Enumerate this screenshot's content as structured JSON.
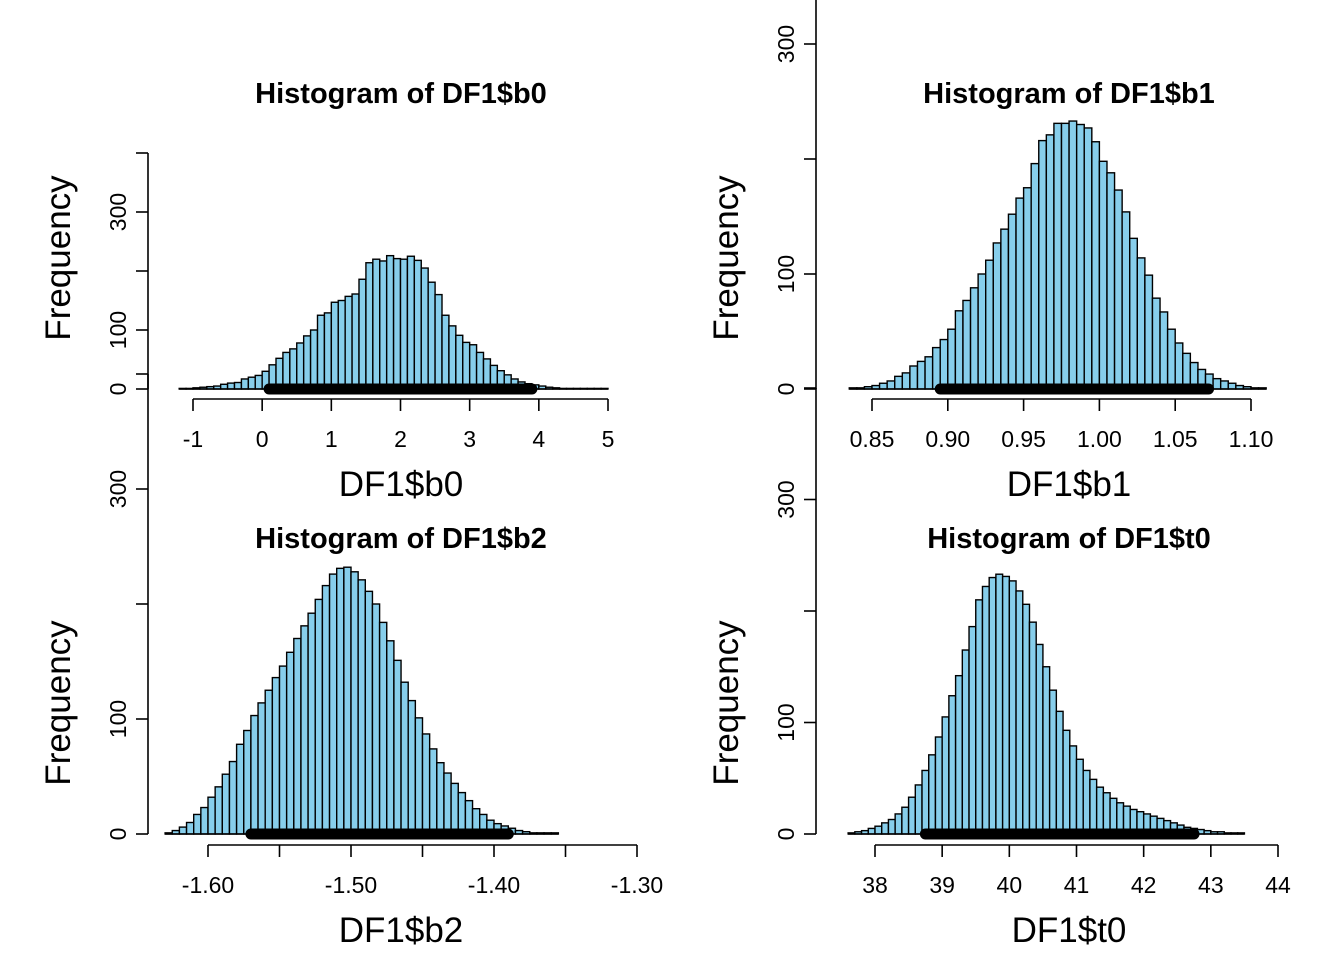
{
  "chart_data": [
    {
      "type": "bar",
      "title": "Histogram of DF1$b0",
      "xlabel": "DF1$b0",
      "ylabel": "Frequency",
      "bar_color": "#87ceeb",
      "interval_color": "#000000",
      "x_ticks": [
        -1,
        0,
        1,
        2,
        3,
        4,
        5
      ],
      "x_tick_labels": [
        "-1",
        "0",
        "1",
        "2",
        "3",
        "4",
        "5"
      ],
      "y_ticks": [
        0,
        100,
        300
      ],
      "y_tick_labels": [
        "0",
        "100",
        "300"
      ],
      "xlim": [
        -1,
        5
      ],
      "ylim": [
        0,
        400
      ],
      "bin_start": -1.2,
      "bin_width": 0.1,
      "values": [
        1,
        1,
        2,
        3,
        4,
        5,
        8,
        10,
        11,
        17,
        20,
        23,
        30,
        41,
        52,
        62,
        68,
        78,
        90,
        100,
        125,
        129,
        147,
        150,
        157,
        161,
        186,
        214,
        220,
        217,
        226,
        221,
        220,
        225,
        218,
        205,
        181,
        160,
        125,
        107,
        91,
        79,
        75,
        62,
        51,
        40,
        31,
        24,
        17,
        12,
        9,
        7,
        5,
        3,
        2,
        1,
        1,
        1,
        1,
        1,
        1,
        1
      ],
      "interval": [
        0.1,
        3.9
      ]
    },
    {
      "type": "bar",
      "title": "Histogram of DF1$b1",
      "xlabel": "DF1$b1",
      "ylabel": "Frequency",
      "bar_color": "#87ceeb",
      "interval_color": "#000000",
      "x_ticks": [
        0.85,
        0.9,
        0.95,
        1.0,
        1.05,
        1.1
      ],
      "x_tick_labels": [
        "0.85",
        "0.90",
        "0.95",
        "1.00",
        "1.05",
        "1.10"
      ],
      "y_ticks": [
        0,
        100,
        300
      ],
      "y_tick_labels": [
        "0",
        "100",
        "300"
      ],
      "xlim": [
        0.85,
        1.1
      ],
      "ylim": [
        0,
        400
      ],
      "bin_start": 0.835,
      "bin_width": 0.005,
      "values": [
        1,
        1,
        2,
        3,
        5,
        7,
        11,
        14,
        20,
        24,
        28,
        36,
        43,
        52,
        68,
        77,
        88,
        100,
        112,
        127,
        139,
        152,
        166,
        175,
        196,
        216,
        221,
        231,
        231,
        233,
        230,
        227,
        215,
        198,
        188,
        173,
        154,
        131,
        114,
        99,
        79,
        67,
        52,
        40,
        31,
        23,
        17,
        13,
        9,
        7,
        5,
        3,
        2,
        1,
        1
      ],
      "interval": [
        0.895,
        1.072
      ]
    },
    {
      "type": "bar",
      "title": "Histogram of DF1$b2",
      "xlabel": "DF1$b2",
      "ylabel": "Frequency",
      "bar_color": "#87ceeb",
      "interval_color": "#000000",
      "x_ticks": [
        -1.6,
        -1.55,
        -1.5,
        -1.45,
        -1.4,
        -1.35,
        -1.3
      ],
      "x_tick_labels": [
        "-1.60",
        "",
        "-1.50",
        "",
        "-1.40",
        "",
        "-1.30"
      ],
      "y_ticks": [
        0,
        100,
        300
      ],
      "y_tick_labels": [
        "0",
        "100",
        "300"
      ],
      "xlim": [
        -1.6,
        -1.3
      ],
      "ylim": [
        0,
        400
      ],
      "bin_start": -1.63,
      "bin_width": 0.005,
      "values": [
        1,
        3,
        6,
        10,
        17,
        23,
        32,
        41,
        52,
        63,
        78,
        90,
        103,
        114,
        125,
        136,
        146,
        158,
        170,
        181,
        192,
        204,
        216,
        226,
        231,
        232,
        228,
        221,
        211,
        200,
        184,
        168,
        151,
        132,
        116,
        101,
        87,
        74,
        62,
        53,
        44,
        36,
        29,
        22,
        17,
        12,
        9,
        7,
        5,
        3,
        2,
        1,
        1,
        1,
        1
      ],
      "interval": [
        -1.57,
        -1.39
      ]
    },
    {
      "type": "bar",
      "title": "Histogram of DF1$t0",
      "xlabel": "DF1$t0",
      "ylabel": "Frequency",
      "bar_color": "#87ceeb",
      "interval_color": "#000000",
      "x_ticks": [
        38,
        39,
        40,
        41,
        42,
        43,
        44
      ],
      "x_tick_labels": [
        "38",
        "39",
        "40",
        "41",
        "42",
        "43",
        "44"
      ],
      "y_ticks": [
        0,
        100,
        300
      ],
      "y_tick_labels": [
        "0",
        "100",
        "300"
      ],
      "xlim": [
        38,
        44
      ],
      "ylim": [
        0,
        400
      ],
      "bin_start": 37.6,
      "bin_width": 0.1,
      "values": [
        1,
        2,
        3,
        5,
        7,
        10,
        13,
        18,
        24,
        33,
        44,
        57,
        71,
        87,
        105,
        124,
        142,
        165,
        186,
        210,
        222,
        230,
        233,
        231,
        227,
        218,
        206,
        190,
        170,
        150,
        129,
        110,
        93,
        79,
        67,
        57,
        49,
        42,
        37,
        32,
        28,
        25,
        22,
        20,
        18,
        16,
        14,
        12,
        10,
        8,
        6,
        5,
        4,
        3,
        2,
        2,
        1,
        1,
        1
      ],
      "interval": [
        38.75,
        42.75
      ]
    }
  ]
}
